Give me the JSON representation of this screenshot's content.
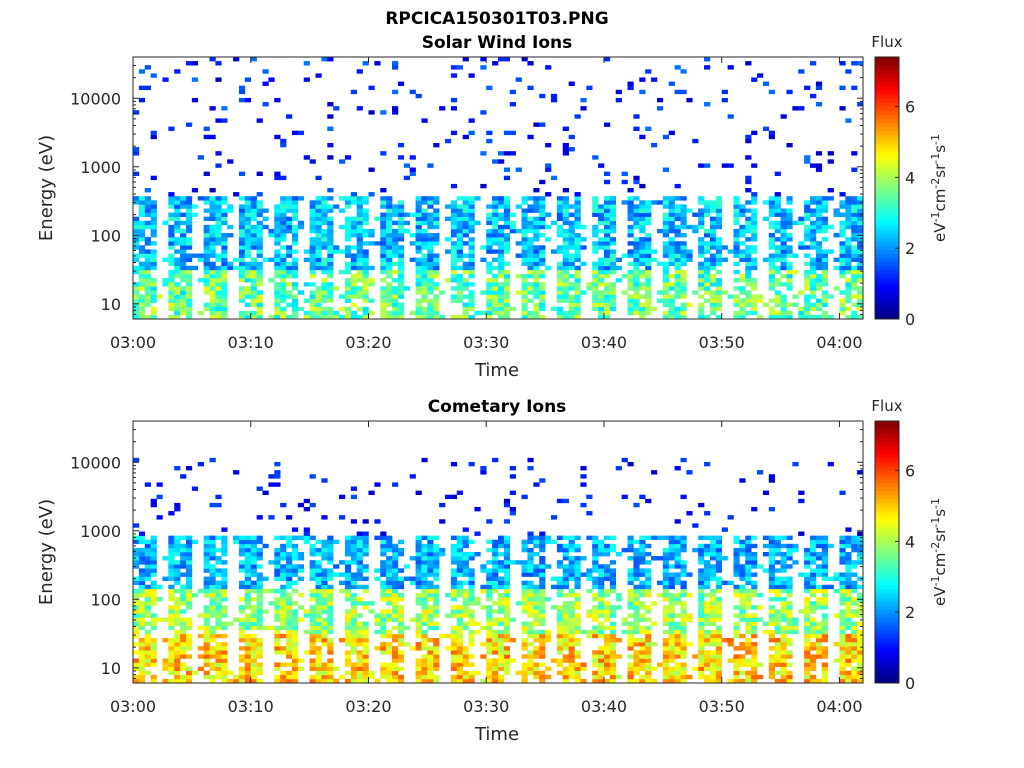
{
  "figure": {
    "title": "RPCICA150301T03.PNG"
  },
  "chart_data": [
    {
      "type": "heatmap",
      "title": "Solar Wind Ions",
      "xlabel": "Time",
      "ylabel": "Energy (eV)",
      "y_scale": "log",
      "ylim": [
        6,
        40000
      ],
      "x_ticks": [
        "03:00",
        "03:10",
        "03:20",
        "03:30",
        "03:40",
        "03:50",
        "04:00"
      ],
      "x_range_minutes": [
        0,
        62
      ],
      "y_ticks": [
        {
          "value": 10,
          "label": "10"
        },
        {
          "value": 100,
          "label": "100"
        },
        {
          "value": 1000,
          "label": "1000"
        },
        {
          "value": 10000,
          "label": "10000"
        }
      ],
      "colorbar": {
        "title": "Flux",
        "label": "eV-1cm-2sr-1s-1",
        "range": [
          0,
          7.4
        ],
        "ticks": [
          0,
          2,
          4,
          6
        ],
        "colormap": "jet"
      },
      "pattern": {
        "description_levels": [
          {
            "energy_range": [
              6,
              30
            ],
            "flux_range": [
              2.5,
              4.5
            ]
          },
          {
            "energy_range": [
              30,
              350
            ],
            "flux_range": [
              1.5,
              3.2
            ]
          },
          {
            "energy_range": [
              350,
              40000
            ],
            "flux_range": [
              0.5,
              1.8
            ],
            "sparse": true
          }
        ]
      }
    },
    {
      "type": "heatmap",
      "title": "Cometary Ions",
      "xlabel": "Time",
      "ylabel": "Energy (eV)",
      "y_scale": "log",
      "ylim": [
        6,
        40000
      ],
      "x_ticks": [
        "03:00",
        "03:10",
        "03:20",
        "03:30",
        "03:40",
        "03:50",
        "04:00"
      ],
      "x_range_minutes": [
        0,
        62
      ],
      "y_ticks": [
        {
          "value": 10,
          "label": "10"
        },
        {
          "value": 100,
          "label": "100"
        },
        {
          "value": 1000,
          "label": "1000"
        },
        {
          "value": 10000,
          "label": "10000"
        }
      ],
      "colorbar": {
        "title": "Flux",
        "label": "eV-1cm-2sr-1s-1",
        "range": [
          0,
          7.4
        ],
        "ticks": [
          0,
          2,
          4,
          6
        ],
        "colormap": "jet"
      },
      "pattern": {
        "description_levels": [
          {
            "energy_range": [
              6,
              30
            ],
            "flux_range": [
              4.0,
              5.8
            ]
          },
          {
            "energy_range": [
              30,
              150
            ],
            "flux_range": [
              3.0,
              4.8
            ]
          },
          {
            "energy_range": [
              150,
              800
            ],
            "flux_range": [
              1.5,
              3.0
            ]
          },
          {
            "energy_range": [
              800,
              12000
            ],
            "flux_range": [
              0.5,
              1.5
            ],
            "sparse": true
          }
        ]
      }
    }
  ]
}
